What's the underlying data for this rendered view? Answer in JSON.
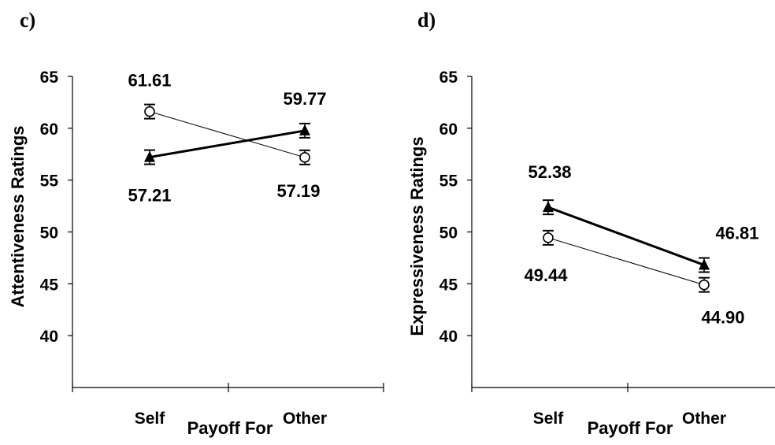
{
  "chart_data": [
    {
      "type": "line",
      "panel_label": "c)",
      "ylabel": "Attentiveness Ratings",
      "xlabel": "Payoff For",
      "categories": [
        "Self",
        "Other"
      ],
      "ylim": [
        40,
        65
      ],
      "yticks": [
        "65",
        "60",
        "55",
        "50",
        "45",
        "40"
      ],
      "series": [
        {
          "marker": "open-circle",
          "values": [
            61.61,
            57.19
          ],
          "labels": [
            "61.61",
            "57.19"
          ]
        },
        {
          "marker": "filled-triangle",
          "values": [
            57.21,
            59.77
          ],
          "labels": [
            "57.21",
            "59.77"
          ]
        }
      ]
    },
    {
      "type": "line",
      "panel_label": "d)",
      "ylabel": "Expressiveness Ratings",
      "xlabel": "Payoff For",
      "categories": [
        "Self",
        "Other"
      ],
      "ylim": [
        40,
        65
      ],
      "yticks": [
        "65",
        "60",
        "55",
        "50",
        "45",
        "40"
      ],
      "series": [
        {
          "marker": "open-circle",
          "values": [
            49.44,
            44.9
          ],
          "labels": [
            "49.44",
            "44.90"
          ]
        },
        {
          "marker": "filled-triangle",
          "values": [
            52.38,
            46.81
          ],
          "labels": [
            "52.38",
            "46.81"
          ]
        }
      ]
    }
  ]
}
